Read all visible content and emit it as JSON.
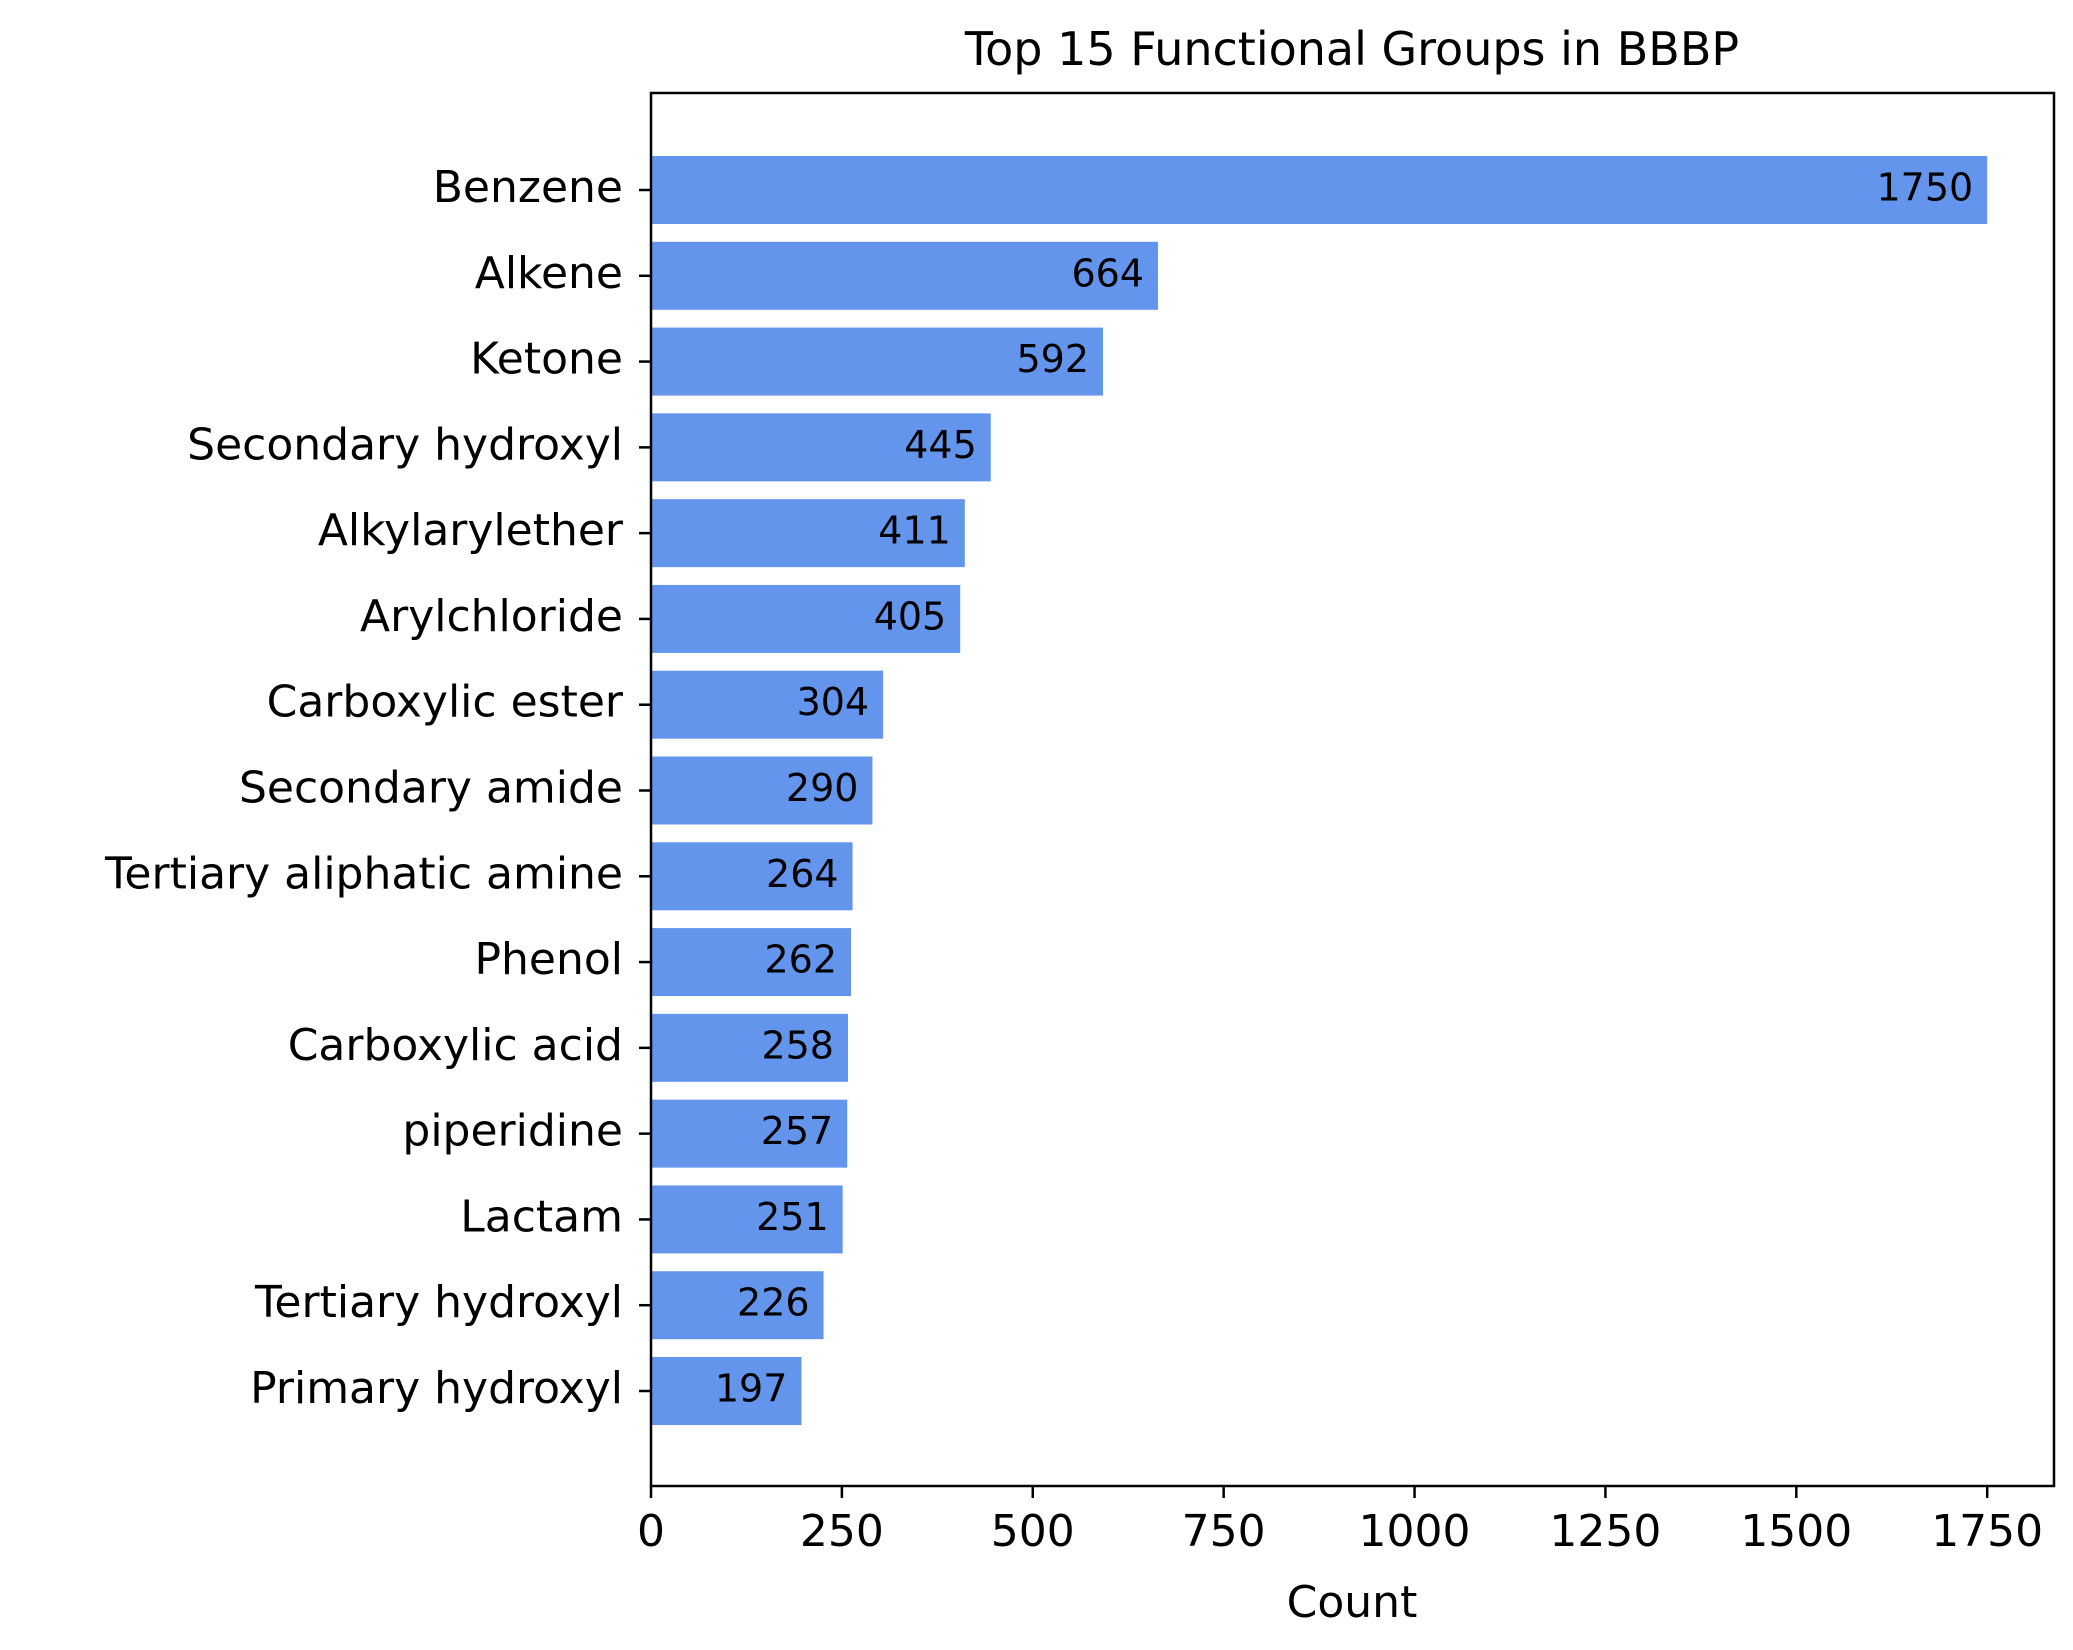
{
  "chart_data": {
    "type": "bar",
    "orientation": "horizontal",
    "title": "Top 15 Functional Groups in BBBP",
    "xlabel": "Count",
    "ylabel": "",
    "xlim": [
      0,
      1837.5
    ],
    "xticks": [
      0,
      250,
      500,
      750,
      1000,
      1250,
      1500,
      1750
    ],
    "xtick_labels": [
      "0",
      "250",
      "500",
      "750",
      "1000",
      "1250",
      "1500",
      "1750"
    ],
    "grid": false,
    "bar_color": "#6495ED",
    "categories": [
      "Benzene",
      "Alkene",
      "Ketone",
      "Secondary hydroxyl",
      "Alkylarylether",
      "Arylchloride",
      "Carboxylic ester",
      "Secondary amide",
      "Tertiary aliphatic amine",
      "Phenol",
      "Carboxylic acid",
      "piperidine",
      "Lactam",
      "Tertiary hydroxyl",
      "Primary hydroxyl"
    ],
    "values": [
      1750,
      664,
      592,
      445,
      411,
      405,
      304,
      290,
      264,
      262,
      258,
      257,
      251,
      226,
      197
    ],
    "value_labels": [
      "1750",
      "664",
      "592",
      "445",
      "411",
      "405",
      "304",
      "290",
      "264",
      "262",
      "258",
      "257",
      "251",
      "226",
      "197"
    ]
  }
}
